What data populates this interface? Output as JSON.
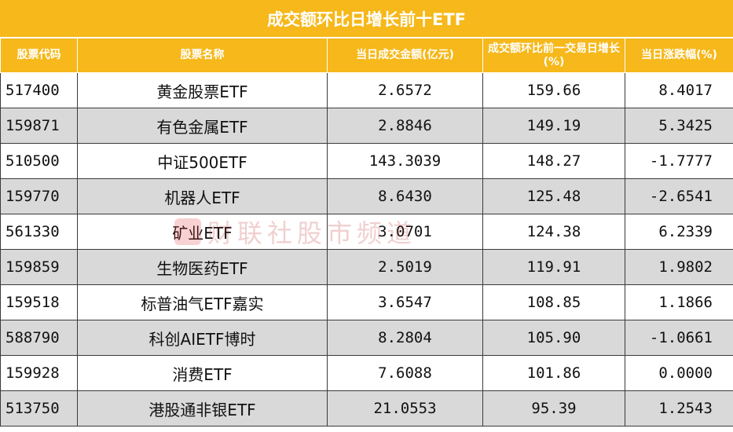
{
  "title": "成交额环比日增长前十ETF",
  "headers": [
    "股票代码",
    "股票名称",
    "当日成交金额(亿元)",
    "成交额环比前一交易日增长(%)",
    "当日涨跌幅(%)"
  ],
  "rows": [
    {
      "code": "517400",
      "name": "黄金股票ETF",
      "turnover": "2.6572",
      "growth": "159.66",
      "change": "8.4017"
    },
    {
      "code": "159871",
      "name": "有色金属ETF",
      "turnover": "2.8846",
      "growth": "149.19",
      "change": "5.3425"
    },
    {
      "code": "510500",
      "name": "中证500ETF",
      "turnover": "143.3039",
      "growth": "148.27",
      "change": "-1.7777"
    },
    {
      "code": "159770",
      "name": "机器人ETF",
      "turnover": "8.6430",
      "growth": "125.48",
      "change": "-2.6541"
    },
    {
      "code": "561330",
      "name": "矿业ETF",
      "turnover": "3.0701",
      "growth": "124.38",
      "change": "6.2339"
    },
    {
      "code": "159859",
      "name": "生物医药ETF",
      "turnover": "2.5019",
      "growth": "119.91",
      "change": "1.9802"
    },
    {
      "code": "159518",
      "name": "标普油气ETF嘉实",
      "turnover": "3.6547",
      "growth": "108.85",
      "change": "1.1866"
    },
    {
      "code": "588790",
      "name": "科创AIETF博时",
      "turnover": "8.2804",
      "growth": "105.90",
      "change": "-1.0661"
    },
    {
      "code": "159928",
      "name": "消费ETF",
      "turnover": "7.6088",
      "growth": "101.86",
      "change": "0.0000"
    },
    {
      "code": "513750",
      "name": "港股通非银ETF",
      "turnover": "21.0553",
      "growth": "95.39",
      "change": "1.2543"
    }
  ],
  "watermark": "财联社股市频道",
  "colors": {
    "header_bg": "#f6b81a",
    "header_text": "#ffffff",
    "stripe": "#d9d9d9",
    "border": "#3a3a3a"
  }
}
